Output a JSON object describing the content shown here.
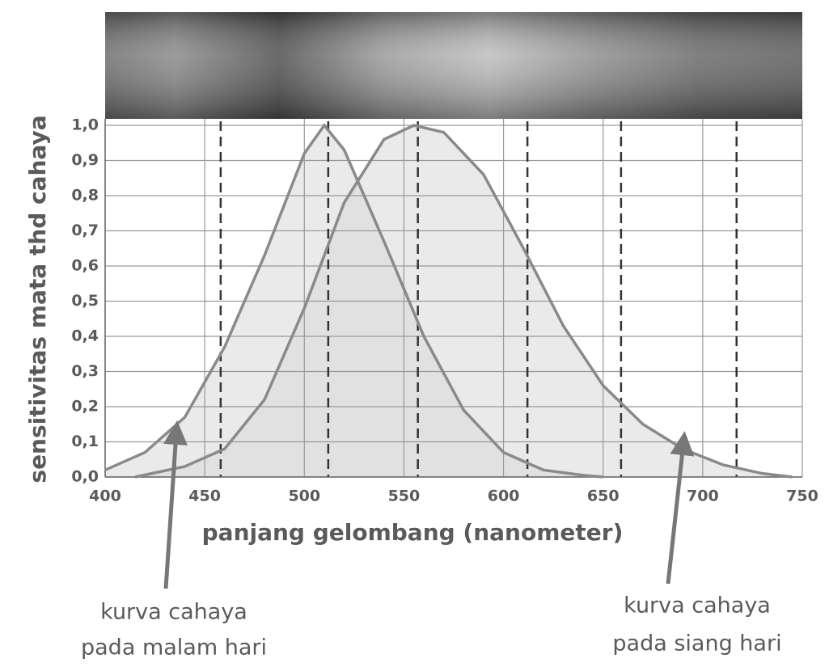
{
  "chart_data": {
    "type": "line",
    "x_label": "panjang gelombang (nanometer)",
    "y_label": "sensitivitas mata thd cahaya",
    "xlim": [
      400,
      750
    ],
    "xticks": [
      400,
      450,
      500,
      550,
      600,
      650,
      700,
      750
    ],
    "ylim": [
      0,
      1
    ],
    "yticks": [
      {
        "value": 0,
        "label": "0,0"
      },
      {
        "value": 0.1,
        "label": "0,1"
      },
      {
        "value": 0.2,
        "label": "0,2"
      },
      {
        "value": 0.3,
        "label": "0,3"
      },
      {
        "value": 0.4,
        "label": "0,4"
      },
      {
        "value": 0.5,
        "label": "0,5"
      },
      {
        "value": 0.6,
        "label": "0,6"
      },
      {
        "value": 0.7,
        "label": "0,7"
      },
      {
        "value": 0.8,
        "label": "0,8"
      },
      {
        "value": 0.9,
        "label": "0,9"
      },
      {
        "value": 1,
        "label": "1,0"
      }
    ],
    "grid": true,
    "reference_lines": [
      458,
      512,
      557,
      612,
      659,
      717
    ],
    "series": [
      {
        "color": "#8a8a8a",
        "x": [
          400,
          420,
          440,
          460,
          480,
          500,
          510,
          520,
          540,
          560,
          580,
          600,
          620,
          640,
          650
        ],
        "values": [
          0.02,
          0.07,
          0.17,
          0.37,
          0.63,
          0.92,
          1.0,
          0.93,
          0.67,
          0.4,
          0.19,
          0.07,
          0.02,
          0.005,
          0
        ]
      },
      {
        "color": "#8a8a8a",
        "x": [
          415,
          440,
          460,
          480,
          500,
          520,
          540,
          555,
          570,
          590,
          610,
          630,
          650,
          670,
          690,
          710,
          730,
          745
        ],
        "values": [
          0,
          0.03,
          0.08,
          0.22,
          0.48,
          0.78,
          0.96,
          1.0,
          0.98,
          0.86,
          0.65,
          0.43,
          0.26,
          0.15,
          0.08,
          0.035,
          0.01,
          0
        ]
      }
    ],
    "annotations": [
      {
        "lines": [
          "kurva cahaya",
          "pada malam hari"
        ]
      },
      {
        "lines": [
          "kurva cahaya",
          "pada siang hari"
        ]
      }
    ]
  }
}
